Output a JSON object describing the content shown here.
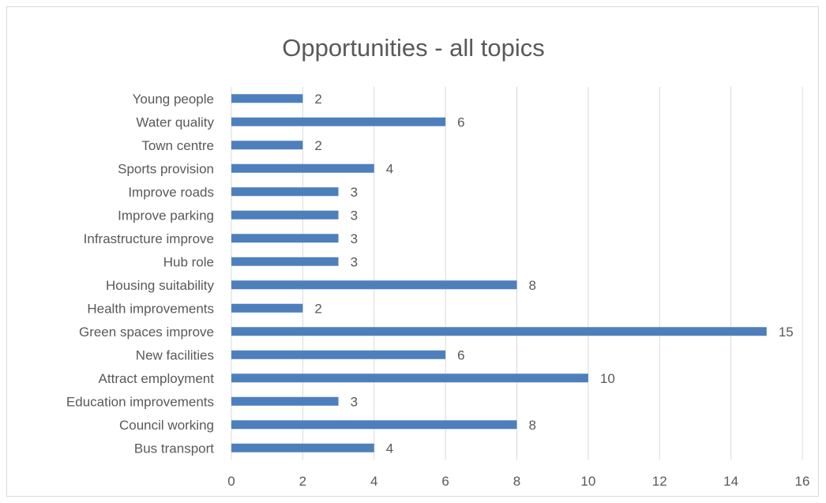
{
  "chart_data": {
    "type": "bar",
    "orientation": "horizontal",
    "title": "Opportunities - all topics",
    "categories": [
      "Bus transport",
      "Council working",
      "Education improvements",
      "Attract employment",
      "New facilities",
      "Green spaces improve",
      "Health improvements",
      "Housing suitability",
      "Hub role",
      "Infrastructure improve",
      "Improve parking",
      "Improve roads",
      "Sports provision",
      "Town centre",
      "Water quality",
      "Young people"
    ],
    "values": [
      4,
      8,
      3,
      10,
      6,
      15,
      2,
      8,
      3,
      3,
      3,
      3,
      4,
      2,
      6,
      2
    ],
    "x_ticks": [
      0,
      2,
      4,
      6,
      8,
      10,
      12,
      14,
      16
    ],
    "xlim": [
      0,
      16
    ],
    "xlabel": "",
    "ylabel": "",
    "grid": "vertical",
    "legend": "none",
    "data_labels": true,
    "colors": {
      "bar": "#4e7fbd",
      "grid": "#d9d9d9",
      "text": "#595959",
      "title": "#595959"
    }
  }
}
